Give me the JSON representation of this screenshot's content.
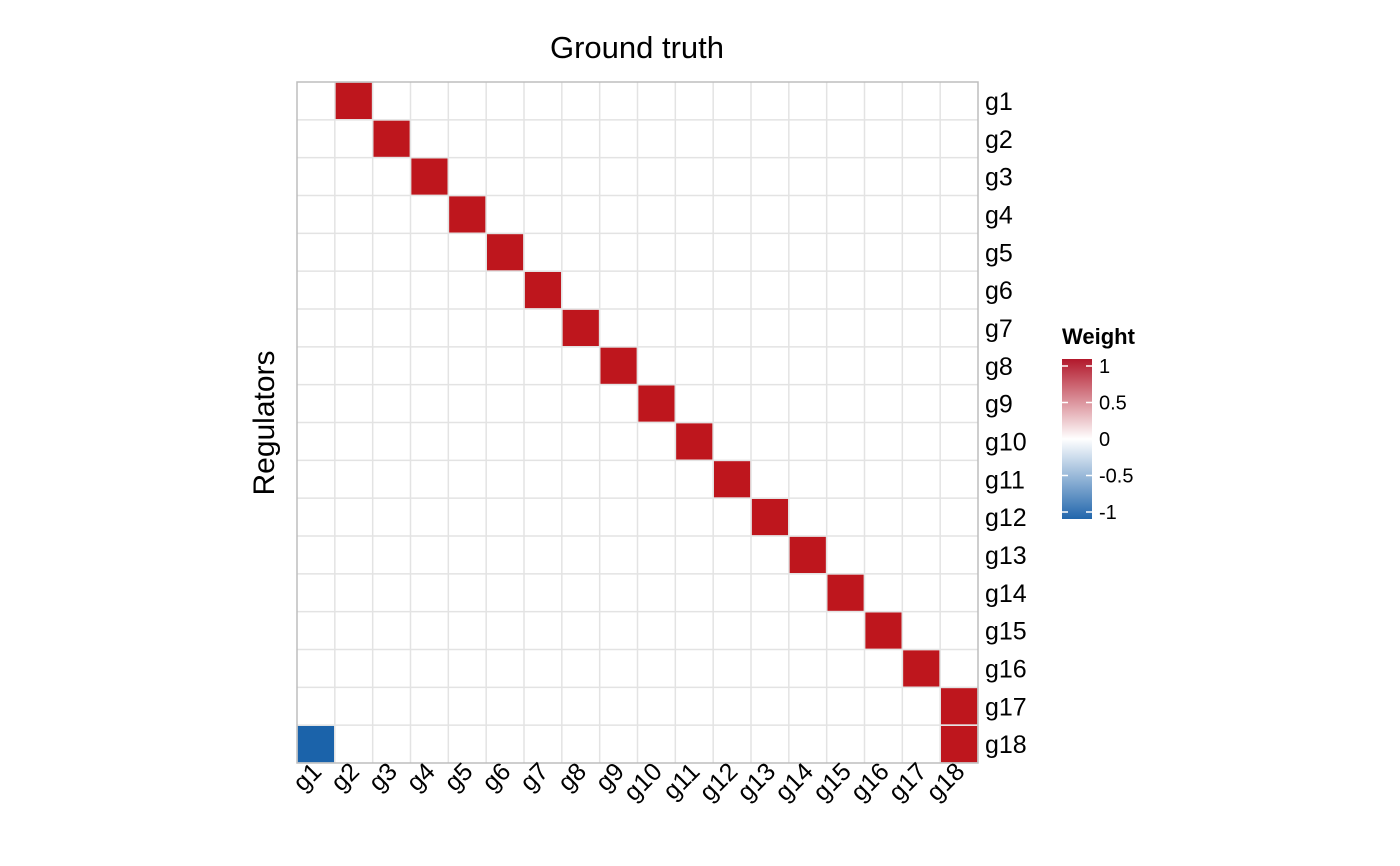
{
  "chart_data": {
    "type": "heatmap",
    "title": "Ground truth",
    "ylabel": "Regulators",
    "xlabel": "",
    "x_categories": [
      "g1",
      "g2",
      "g3",
      "g4",
      "g5",
      "g6",
      "g7",
      "g8",
      "g9",
      "g10",
      "g11",
      "g12",
      "g13",
      "g14",
      "g15",
      "g16",
      "g17",
      "g18"
    ],
    "y_categories": [
      "g1",
      "g2",
      "g3",
      "g4",
      "g5",
      "g6",
      "g7",
      "g8",
      "g9",
      "g10",
      "g11",
      "g12",
      "g13",
      "g14",
      "g15",
      "g16",
      "g17",
      "g18"
    ],
    "cells": [
      {
        "x": "g2",
        "y": "g1",
        "value": 1
      },
      {
        "x": "g3",
        "y": "g2",
        "value": 1
      },
      {
        "x": "g4",
        "y": "g3",
        "value": 1
      },
      {
        "x": "g5",
        "y": "g4",
        "value": 1
      },
      {
        "x": "g6",
        "y": "g5",
        "value": 1
      },
      {
        "x": "g7",
        "y": "g6",
        "value": 1
      },
      {
        "x": "g8",
        "y": "g7",
        "value": 1
      },
      {
        "x": "g9",
        "y": "g8",
        "value": 1
      },
      {
        "x": "g10",
        "y": "g9",
        "value": 1
      },
      {
        "x": "g11",
        "y": "g10",
        "value": 1
      },
      {
        "x": "g12",
        "y": "g11",
        "value": 1
      },
      {
        "x": "g13",
        "y": "g12",
        "value": 1
      },
      {
        "x": "g14",
        "y": "g13",
        "value": 1
      },
      {
        "x": "g15",
        "y": "g14",
        "value": 1
      },
      {
        "x": "g16",
        "y": "g15",
        "value": 1
      },
      {
        "x": "g17",
        "y": "g16",
        "value": 1
      },
      {
        "x": "g18",
        "y": "g17",
        "value": 1
      },
      {
        "x": "g18",
        "y": "g18",
        "value": 1
      },
      {
        "x": "g1",
        "y": "g18",
        "value": -1
      }
    ],
    "legend": {
      "title": "Weight",
      "placement": "right",
      "ticks": [
        {
          "value": 1,
          "label": "1"
        },
        {
          "value": 0.5,
          "label": "0.5"
        },
        {
          "value": 0,
          "label": "0"
        },
        {
          "value": -0.5,
          "label": "-0.5"
        },
        {
          "value": -1,
          "label": "-1"
        }
      ],
      "range": [
        -1,
        1
      ]
    },
    "colors": {
      "high": "#B2182B",
      "mid": "#FFFFFF",
      "low": "#2166AC",
      "cell_positive": "#BE161D",
      "cell_negative": "#1B63AA",
      "grid": "#E3E3E3",
      "frame": "#BDBDBD"
    },
    "grid": true
  }
}
